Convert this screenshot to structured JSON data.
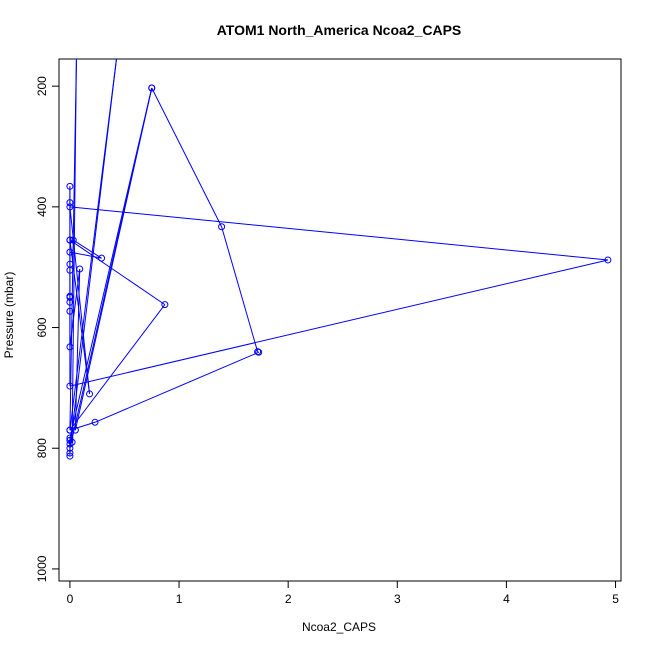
{
  "chart_data": {
    "type": "line",
    "title": "ATOM1 North_America Ncoa2_CAPS",
    "xlabel": "Ncoa2_CAPS",
    "ylabel": "Pressure (mbar)",
    "xlim": [
      -0.1,
      5.05
    ],
    "ylim": [
      1020,
      155
    ],
    "y_reversed": true,
    "x_ticks": [
      "0",
      "1",
      "2",
      "3",
      "4",
      "5"
    ],
    "y_ticks": [
      "200",
      "400",
      "600",
      "800",
      "1000"
    ],
    "grid": false,
    "line_color": "#0000ff",
    "series": [
      {
        "points": [
          {
            "x": 0.02,
            "y": 790
          },
          {
            "x": 0.06,
            "y": 150
          },
          {
            "x": 0.0,
            "y": 770
          },
          {
            "x": 0.43,
            "y": 150
          },
          {
            "x": 0.0,
            "y": 800
          },
          {
            "x": 0.75,
            "y": 203
          },
          {
            "x": 1.39,
            "y": 433
          },
          {
            "x": 1.72,
            "y": 640
          },
          {
            "x": 1.73,
            "y": 641
          },
          {
            "x": 0.23,
            "y": 757
          },
          {
            "x": 0.0,
            "y": 770
          },
          {
            "x": 0.87,
            "y": 562
          },
          {
            "x": 0.0,
            "y": 455
          },
          {
            "x": 0.18,
            "y": 710
          },
          {
            "x": 0.0,
            "y": 400
          },
          {
            "x": 4.93,
            "y": 488
          },
          {
            "x": 0.0,
            "y": 697
          },
          {
            "x": 0.0,
            "y": 366
          },
          {
            "x": 0.0,
            "y": 393
          },
          {
            "x": 0.0,
            "y": 455
          },
          {
            "x": 0.03,
            "y": 455
          },
          {
            "x": 0.29,
            "y": 485
          },
          {
            "x": 0.0,
            "y": 475
          },
          {
            "x": 0.0,
            "y": 495
          },
          {
            "x": 0.0,
            "y": 505
          },
          {
            "x": 0.0,
            "y": 548
          },
          {
            "x": 0.0,
            "y": 550
          },
          {
            "x": 0.0,
            "y": 558
          },
          {
            "x": 0.0,
            "y": 573
          },
          {
            "x": 0.0,
            "y": 632
          },
          {
            "x": 0.09,
            "y": 503
          },
          {
            "x": 0.05,
            "y": 770
          },
          {
            "x": 0.75,
            "y": 203
          },
          {
            "x": 0.0,
            "y": 783
          },
          {
            "x": 0.0,
            "y": 787
          },
          {
            "x": 0.0,
            "y": 793
          },
          {
            "x": 0.0,
            "y": 808
          },
          {
            "x": 0.0,
            "y": 813
          }
        ]
      }
    ]
  }
}
